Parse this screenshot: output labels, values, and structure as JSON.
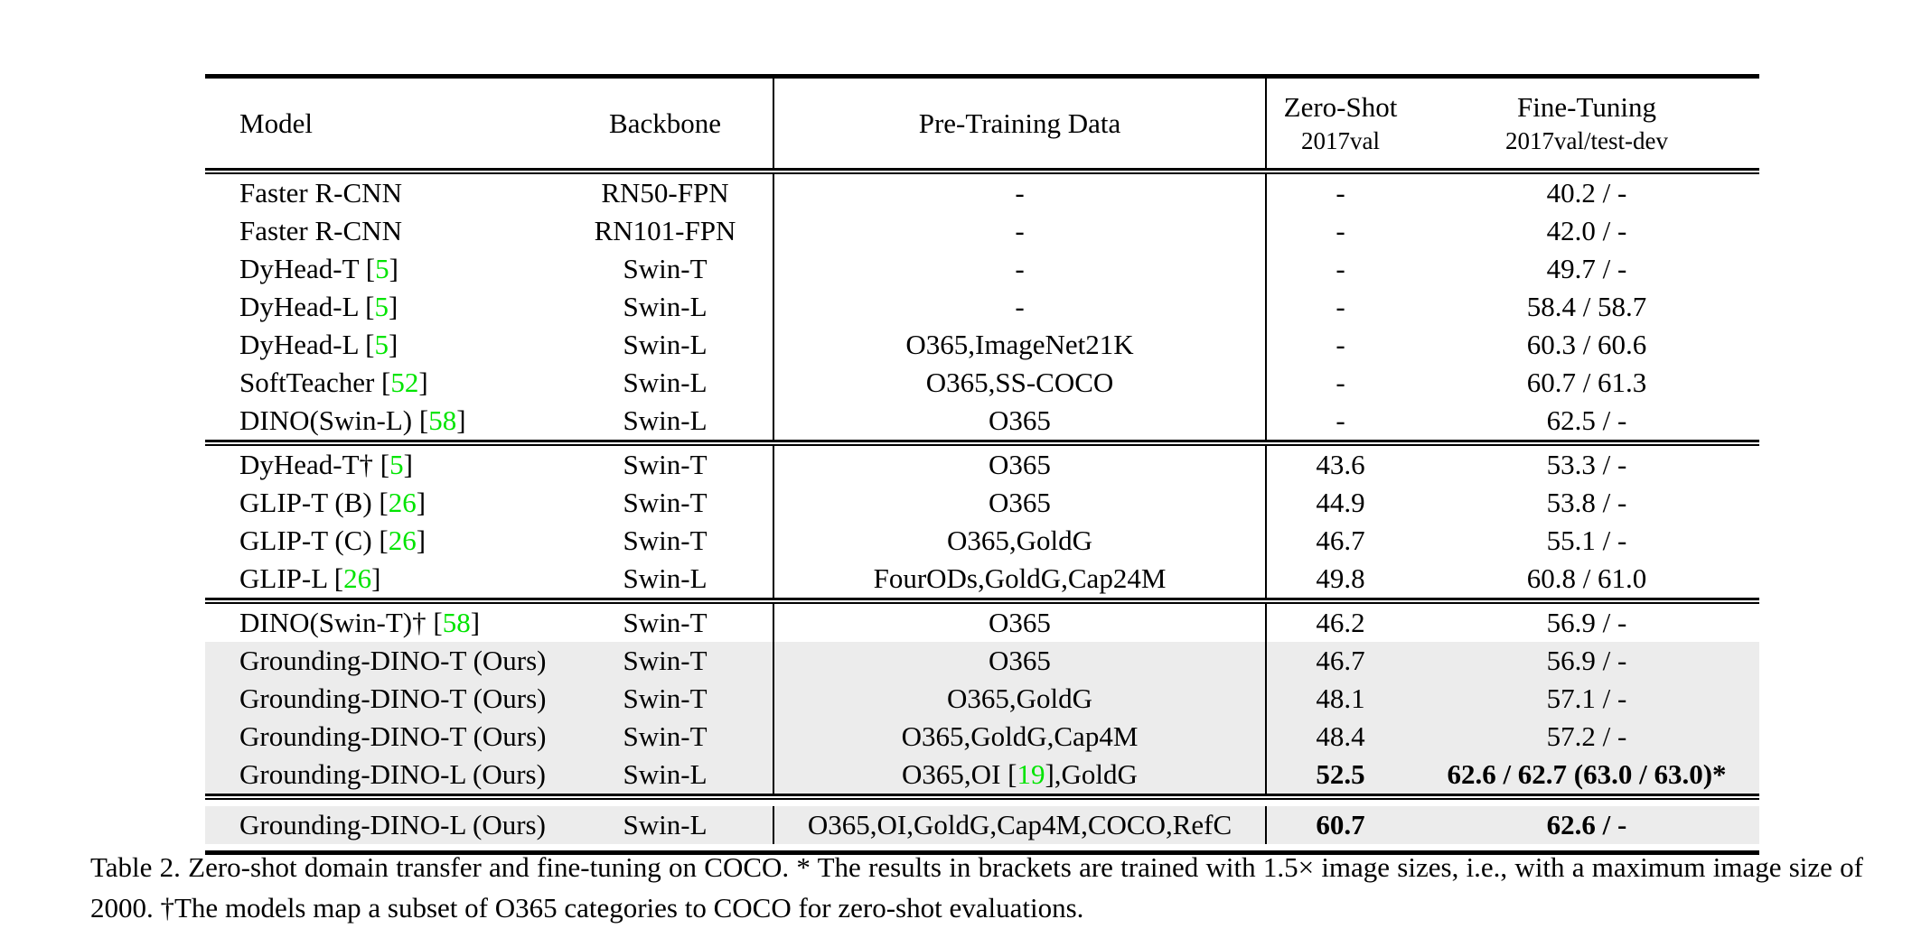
{
  "colors": {
    "citation_green": "#00e400",
    "highlight_row_gray": "#ececec",
    "text": "#000000",
    "background": "#ffffff"
  },
  "table": {
    "header": {
      "model": "Model",
      "backbone": "Backbone",
      "pretraining": "Pre-Training Data",
      "zeroshot": "Zero-Shot",
      "zeroshot_sub": "2017val",
      "finetuning": "Fine-Tuning",
      "finetuning_sub": "2017val/test-dev"
    },
    "blocks": [
      {
        "rows": [
          {
            "model": "Faster R-CNN",
            "backbone": "RN50-FPN",
            "pretrain": "-",
            "zeroshot": "-",
            "finetune": "40.2 / -",
            "gray": false,
            "bold": false
          },
          {
            "model": "Faster R-CNN",
            "backbone": "RN101-FPN",
            "pretrain": "-",
            "zeroshot": "-",
            "finetune": "42.0 / -",
            "gray": false,
            "bold": false
          },
          {
            "model": "DyHead-T [5]",
            "backbone": "Swin-T",
            "pretrain": "-",
            "zeroshot": "-",
            "finetune": "49.7 / -",
            "gray": false,
            "bold": false
          },
          {
            "model": "DyHead-L [5]",
            "backbone": "Swin-L",
            "pretrain": "-",
            "zeroshot": "-",
            "finetune": "58.4 / 58.7",
            "gray": false,
            "bold": false
          },
          {
            "model": "DyHead-L [5]",
            "backbone": "Swin-L",
            "pretrain": "O365,ImageNet21K",
            "zeroshot": "-",
            "finetune": "60.3 / 60.6",
            "gray": false,
            "bold": false
          },
          {
            "model": "SoftTeacher [52]",
            "backbone": "Swin-L",
            "pretrain": "O365,SS-COCO",
            "zeroshot": "-",
            "finetune": "60.7 / 61.3",
            "gray": false,
            "bold": false
          },
          {
            "model": "DINO(Swin-L) [58]",
            "backbone": "Swin-L",
            "pretrain": "O365",
            "zeroshot": "-",
            "finetune": "62.5 / -",
            "gray": false,
            "bold": false
          }
        ]
      },
      {
        "rows": [
          {
            "model": "DyHead-T† [5]",
            "backbone": "Swin-T",
            "pretrain": "O365",
            "zeroshot": "43.6",
            "finetune": "53.3 / -",
            "gray": false,
            "bold": false
          },
          {
            "model": "GLIP-T (B) [26]",
            "backbone": "Swin-T",
            "pretrain": "O365",
            "zeroshot": "44.9",
            "finetune": "53.8 / -",
            "gray": false,
            "bold": false
          },
          {
            "model": "GLIP-T (C) [26]",
            "backbone": "Swin-T",
            "pretrain": "O365,GoldG",
            "zeroshot": "46.7",
            "finetune": "55.1 / -",
            "gray": false,
            "bold": false
          },
          {
            "model": "GLIP-L [26]",
            "backbone": "Swin-L",
            "pretrain": "FourODs,GoldG,Cap24M",
            "zeroshot": "49.8",
            "finetune": "60.8 / 61.0",
            "gray": false,
            "bold": false
          }
        ]
      },
      {
        "rows": [
          {
            "model": "DINO(Swin-T)† [58]",
            "backbone": "Swin-T",
            "pretrain": "O365",
            "zeroshot": "46.2",
            "finetune": "56.9 / -",
            "gray": false,
            "bold": false
          },
          {
            "model": "Grounding-DINO-T (Ours)",
            "backbone": "Swin-T",
            "pretrain": "O365",
            "zeroshot": "46.7",
            "finetune": "56.9 / -",
            "gray": true,
            "bold": false
          },
          {
            "model": "Grounding-DINO-T (Ours)",
            "backbone": "Swin-T",
            "pretrain": "O365,GoldG",
            "zeroshot": "48.1",
            "finetune": "57.1 / -",
            "gray": true,
            "bold": false
          },
          {
            "model": "Grounding-DINO-T (Ours)",
            "backbone": "Swin-T",
            "pretrain": "O365,GoldG,Cap4M",
            "zeroshot": "48.4",
            "finetune": "57.2 / -",
            "gray": true,
            "bold": false
          },
          {
            "model": "Grounding-DINO-L (Ours)",
            "backbone": "Swin-L",
            "pretrain": "O365,OI [19],GoldG",
            "zeroshot": "52.5",
            "finetune": "62.6 / 62.7 (63.0 / 63.0)*",
            "gray": true,
            "bold": true
          }
        ]
      },
      {
        "rows": [
          {
            "model": "Grounding-DINO-L (Ours)",
            "backbone": "Swin-L",
            "pretrain": "O365,OI,GoldG,Cap4M,COCO,RefC",
            "zeroshot": "60.7",
            "finetune": "62.6 / -",
            "gray": true,
            "bold": true
          }
        ]
      }
    ]
  },
  "caption": {
    "text": "Table 2.  Zero-shot domain transfer and fine-tuning on COCO. * The results in brackets are trained with 1.5× image sizes, i.e., with a maximum image size of 2000. †The models map a subset of O365 categories to COCO for zero-shot evaluations."
  }
}
